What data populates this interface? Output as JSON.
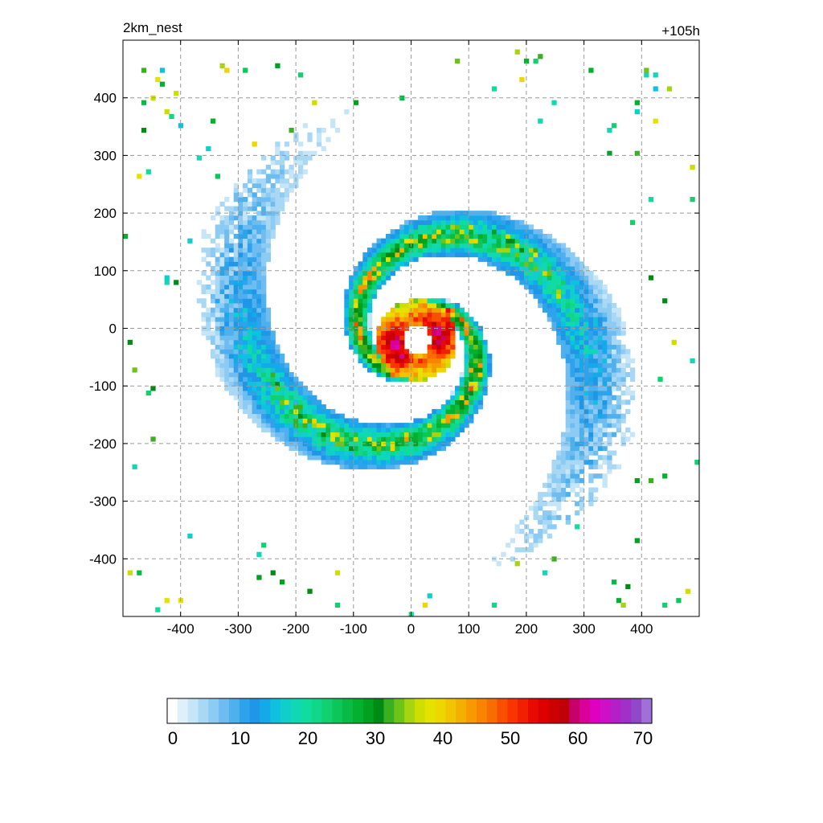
{
  "chart_data": {
    "type": "heatmap",
    "title_left": "2km_nest",
    "title_right": "+105h",
    "xlim": [
      -500,
      500
    ],
    "ylim": [
      -500,
      500
    ],
    "xticks": [
      -400,
      -300,
      -200,
      -100,
      0,
      100,
      200,
      300,
      400
    ],
    "yticks": [
      400,
      300,
      200,
      100,
      0,
      -100,
      -200,
      -300,
      -400
    ],
    "grid": true,
    "field": "spiral storm reflectivity with clear eye near (10, -20)",
    "eye_center": [
      10,
      -20
    ],
    "colorbar": {
      "ticks": [
        0,
        10,
        20,
        30,
        40,
        50,
        60,
        70
      ],
      "range": [
        0,
        70
      ],
      "colors": [
        "#ffffff",
        "#dff0fb",
        "#c6e6f8",
        "#a9d8f5",
        "#8ccbf3",
        "#6fbdf0",
        "#4fb0ee",
        "#2fa2ec",
        "#1f96e6",
        "#14a9e8",
        "#10c0df",
        "#10cfcb",
        "#10d8b4",
        "#10dd9d",
        "#10d888",
        "#10d070",
        "#0cc65a",
        "#08bb44",
        "#04b030",
        "#00a020",
        "#008c14",
        "#3ab020",
        "#6cc418",
        "#a6d410",
        "#cede00",
        "#e6e200",
        "#eed600",
        "#f2c400",
        "#f4b000",
        "#f69a00",
        "#f88400",
        "#f86c00",
        "#f85000",
        "#f83400",
        "#f02000",
        "#e80a00",
        "#dc0000",
        "#cc0000",
        "#c00008",
        "#c8006a",
        "#da009c",
        "#e000c0",
        "#cc10c8",
        "#b420c8",
        "#a030c8",
        "#9048c8",
        "#a070d8"
      ]
    }
  }
}
